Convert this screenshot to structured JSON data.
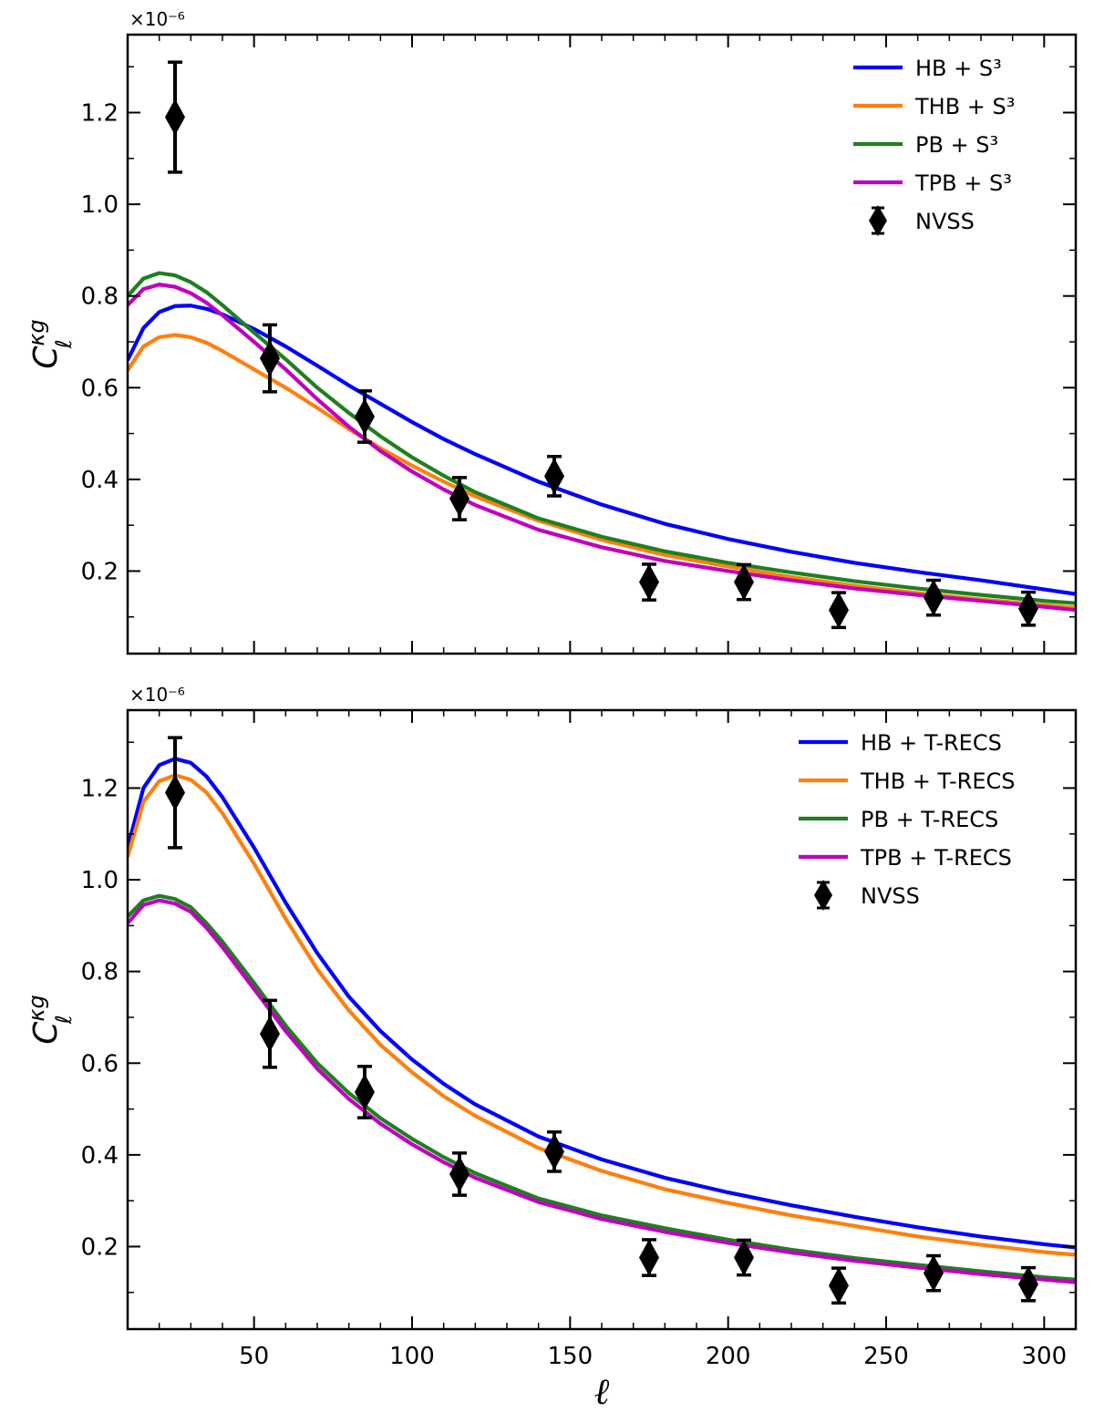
{
  "chart_data": [
    {
      "type": "line",
      "panel": "top",
      "title": "",
      "xlabel": "",
      "ylabel": "C",
      "ylabel_superscript": "κg",
      "ylabel_subscript": "ℓ",
      "offset_text": "×10⁻⁶",
      "xlim": [
        10,
        310
      ],
      "ylim": [
        0.02,
        1.37
      ],
      "yticks": [
        0.2,
        0.4,
        0.6,
        0.8,
        1.0,
        1.2
      ],
      "ytick_labels": [
        "0.2",
        "0.4",
        "0.6",
        "0.8",
        "1.0",
        "1.2"
      ],
      "xticks": [
        50,
        100,
        150,
        200,
        250,
        300
      ],
      "xtick_labels": [],
      "legend_position": "top-right",
      "series": [
        {
          "name": "HB + S³",
          "color": "#0000ff",
          "x": [
            10,
            15,
            20,
            25,
            30,
            35,
            40,
            50,
            60,
            70,
            80,
            90,
            100,
            110,
            120,
            140,
            160,
            180,
            200,
            220,
            240,
            260,
            280,
            300,
            310
          ],
          "y": [
            0.66,
            0.73,
            0.765,
            0.778,
            0.779,
            0.772,
            0.76,
            0.728,
            0.69,
            0.648,
            0.605,
            0.565,
            0.525,
            0.488,
            0.455,
            0.395,
            0.345,
            0.303,
            0.27,
            0.242,
            0.218,
            0.198,
            0.18,
            0.16,
            0.15
          ]
        },
        {
          "name": "THB + S³",
          "color": "#ff7f0e",
          "x": [
            10,
            15,
            20,
            25,
            30,
            35,
            40,
            50,
            60,
            70,
            80,
            90,
            100,
            110,
            120,
            140,
            160,
            180,
            200,
            220,
            240,
            260,
            280,
            300,
            310
          ],
          "y": [
            0.638,
            0.69,
            0.71,
            0.715,
            0.71,
            0.698,
            0.68,
            0.64,
            0.6,
            0.556,
            0.51,
            0.468,
            0.43,
            0.395,
            0.363,
            0.31,
            0.268,
            0.235,
            0.21,
            0.187,
            0.168,
            0.152,
            0.138,
            0.126,
            0.12
          ]
        },
        {
          "name": "PB + S³",
          "color": "#1f7f1f",
          "x": [
            10,
            15,
            20,
            25,
            30,
            35,
            40,
            50,
            60,
            70,
            80,
            90,
            100,
            110,
            120,
            140,
            160,
            180,
            200,
            220,
            240,
            260,
            280,
            300,
            310
          ],
          "y": [
            0.8,
            0.838,
            0.85,
            0.845,
            0.83,
            0.808,
            0.78,
            0.72,
            0.662,
            0.6,
            0.545,
            0.494,
            0.448,
            0.408,
            0.372,
            0.315,
            0.275,
            0.243,
            0.218,
            0.197,
            0.178,
            0.162,
            0.148,
            0.135,
            0.13
          ]
        },
        {
          "name": "TPB + S³",
          "color": "#bf00bf",
          "x": [
            10,
            15,
            20,
            25,
            30,
            35,
            40,
            50,
            60,
            70,
            80,
            90,
            100,
            110,
            120,
            140,
            160,
            180,
            200,
            220,
            240,
            260,
            280,
            300,
            310
          ],
          "y": [
            0.78,
            0.815,
            0.825,
            0.82,
            0.806,
            0.785,
            0.758,
            0.7,
            0.64,
            0.575,
            0.515,
            0.462,
            0.417,
            0.378,
            0.344,
            0.29,
            0.252,
            0.222,
            0.2,
            0.18,
            0.162,
            0.148,
            0.135,
            0.122,
            0.115
          ]
        }
      ],
      "errorbar_series": {
        "name": "NVSS",
        "color": "#000000",
        "x": [
          25,
          55,
          85,
          115,
          145,
          175,
          205,
          235,
          265,
          295
        ],
        "y": [
          1.19,
          0.664,
          0.537,
          0.358,
          0.407,
          0.176,
          0.176,
          0.115,
          0.142,
          0.118
        ],
        "yerr": [
          0.12,
          0.073,
          0.056,
          0.046,
          0.043,
          0.039,
          0.038,
          0.038,
          0.038,
          0.036
        ]
      }
    },
    {
      "type": "line",
      "panel": "bottom",
      "title": "",
      "xlabel": "ℓ",
      "ylabel": "C",
      "ylabel_superscript": "κg",
      "ylabel_subscript": "ℓ",
      "offset_text": "×10⁻⁶",
      "xlim": [
        10,
        310
      ],
      "ylim": [
        0.02,
        1.37
      ],
      "yticks": [
        0.2,
        0.4,
        0.6,
        0.8,
        1.0,
        1.2
      ],
      "ytick_labels": [
        "0.2",
        "0.4",
        "0.6",
        "0.8",
        "1.0",
        "1.2"
      ],
      "xticks": [
        50,
        100,
        150,
        200,
        250,
        300
      ],
      "xtick_labels": [
        "50",
        "100",
        "150",
        "200",
        "250",
        "300"
      ],
      "legend_position": "top-right",
      "series": [
        {
          "name": "HB + T-RECS",
          "color": "#0000ff",
          "x": [
            10,
            15,
            20,
            25,
            30,
            35,
            40,
            50,
            60,
            70,
            80,
            90,
            100,
            110,
            120,
            140,
            160,
            180,
            200,
            220,
            240,
            260,
            280,
            300,
            310
          ],
          "y": [
            1.07,
            1.2,
            1.25,
            1.264,
            1.255,
            1.225,
            1.18,
            1.07,
            0.95,
            0.84,
            0.745,
            0.67,
            0.608,
            0.555,
            0.51,
            0.44,
            0.39,
            0.35,
            0.318,
            0.29,
            0.265,
            0.242,
            0.222,
            0.205,
            0.198
          ]
        },
        {
          "name": "THB + T-RECS",
          "color": "#ff7f0e",
          "x": [
            10,
            15,
            20,
            25,
            30,
            35,
            40,
            50,
            60,
            70,
            80,
            90,
            100,
            110,
            120,
            140,
            160,
            180,
            200,
            220,
            240,
            260,
            280,
            300,
            310
          ],
          "y": [
            1.05,
            1.17,
            1.215,
            1.228,
            1.218,
            1.19,
            1.145,
            1.035,
            0.915,
            0.805,
            0.715,
            0.64,
            0.58,
            0.528,
            0.485,
            0.415,
            0.365,
            0.325,
            0.295,
            0.268,
            0.245,
            0.222,
            0.204,
            0.188,
            0.182
          ]
        },
        {
          "name": "PB + T-RECS",
          "color": "#1f7f1f",
          "x": [
            10,
            15,
            20,
            25,
            30,
            35,
            40,
            50,
            60,
            70,
            80,
            90,
            100,
            110,
            120,
            140,
            160,
            180,
            200,
            220,
            240,
            260,
            280,
            300,
            310
          ],
          "y": [
            0.92,
            0.955,
            0.965,
            0.958,
            0.94,
            0.905,
            0.865,
            0.775,
            0.682,
            0.6,
            0.535,
            0.48,
            0.435,
            0.395,
            0.36,
            0.305,
            0.268,
            0.24,
            0.215,
            0.193,
            0.175,
            0.16,
            0.146,
            0.133,
            0.128
          ]
        },
        {
          "name": "TPB + T-RECS",
          "color": "#bf00bf",
          "x": [
            10,
            15,
            20,
            25,
            30,
            35,
            40,
            50,
            60,
            70,
            80,
            90,
            100,
            110,
            120,
            140,
            160,
            180,
            200,
            220,
            240,
            260,
            280,
            300,
            310
          ],
          "y": [
            0.905,
            0.945,
            0.955,
            0.948,
            0.93,
            0.895,
            0.853,
            0.762,
            0.67,
            0.588,
            0.522,
            0.468,
            0.423,
            0.384,
            0.35,
            0.297,
            0.26,
            0.232,
            0.208,
            0.187,
            0.169,
            0.154,
            0.14,
            0.128,
            0.122
          ]
        }
      ],
      "errorbar_series": {
        "name": "NVSS",
        "color": "#000000",
        "x": [
          25,
          55,
          85,
          115,
          145,
          175,
          205,
          235,
          265,
          295
        ],
        "y": [
          1.19,
          0.664,
          0.537,
          0.358,
          0.407,
          0.176,
          0.176,
          0.115,
          0.142,
          0.118
        ],
        "yerr": [
          0.12,
          0.073,
          0.056,
          0.046,
          0.043,
          0.039,
          0.038,
          0.038,
          0.038,
          0.036
        ]
      }
    }
  ]
}
